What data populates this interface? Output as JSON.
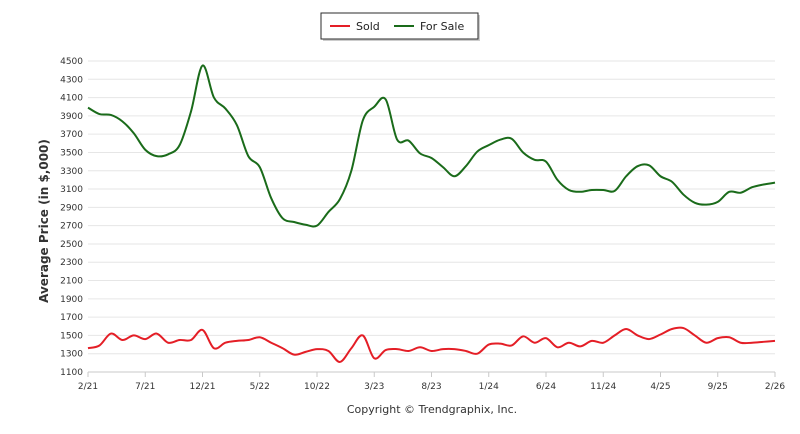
{
  "chart_data": {
    "type": "line",
    "xlabel": "",
    "ylabel": "Average Price (in $,000)",
    "footer": "Copyright © Trendgraphix, Inc.",
    "ylim": [
      1100,
      4500
    ],
    "yticks": [
      1100,
      1300,
      1500,
      1700,
      1900,
      2100,
      2300,
      2500,
      2700,
      2900,
      3100,
      3300,
      3500,
      3700,
      3900,
      4100,
      4300,
      4500
    ],
    "xticks": [
      "2/21",
      "7/21",
      "12/21",
      "5/22",
      "10/22",
      "3/23",
      "8/23",
      "1/24",
      "6/24",
      "11/24",
      "4/25",
      "9/25",
      "2/26"
    ],
    "grid": true,
    "legend": "top-center",
    "categories": [
      "2/21",
      "3/21",
      "4/21",
      "5/21",
      "6/21",
      "7/21",
      "8/21",
      "9/21",
      "10/21",
      "11/21",
      "12/21",
      "1/22",
      "2/22",
      "3/22",
      "4/22",
      "5/22",
      "6/22",
      "7/22",
      "8/22",
      "9/22",
      "10/22",
      "11/22",
      "12/22",
      "1/23",
      "2/23",
      "3/23",
      "4/23",
      "5/23",
      "6/23",
      "7/23",
      "8/23",
      "9/23",
      "10/23",
      "11/23",
      "12/23",
      "1/24",
      "2/24",
      "3/24",
      "4/24",
      "5/24",
      "6/24",
      "7/24",
      "8/24",
      "9/24",
      "10/24",
      "11/24",
      "12/24",
      "1/25",
      "2/25",
      "3/25",
      "4/25",
      "5/25",
      "6/25",
      "7/25",
      "8/25",
      "9/25",
      "10/25",
      "11/25",
      "12/25",
      "1/26",
      "2/26"
    ],
    "series": [
      {
        "name": "Sold",
        "color": "#e41e26",
        "values": [
          1360,
          1390,
          1520,
          1450,
          1500,
          1460,
          1520,
          1420,
          1450,
          1450,
          1560,
          1360,
          1420,
          1440,
          1450,
          1480,
          1420,
          1360,
          1290,
          1320,
          1350,
          1330,
          1210,
          1360,
          1500,
          1250,
          1340,
          1350,
          1330,
          1370,
          1330,
          1350,
          1350,
          1330,
          1300,
          1400,
          1410,
          1390,
          1490,
          1420,
          1470,
          1370,
          1420,
          1380,
          1440,
          1420,
          1500,
          1570,
          1500,
          1460,
          1510,
          1570,
          1580,
          1500,
          1420,
          1470,
          1480,
          1420,
          1420,
          1430,
          1440
        ]
      },
      {
        "name": "For Sale",
        "color": "#1a6b1a",
        "values": [
          3990,
          3920,
          3910,
          3840,
          3710,
          3530,
          3460,
          3480,
          3580,
          3950,
          4450,
          4100,
          3980,
          3800,
          3460,
          3340,
          3000,
          2780,
          2740,
          2710,
          2700,
          2850,
          2990,
          3300,
          3850,
          4000,
          4080,
          3640,
          3630,
          3490,
          3440,
          3340,
          3240,
          3350,
          3510,
          3580,
          3640,
          3650,
          3500,
          3420,
          3400,
          3200,
          3090,
          3070,
          3090,
          3090,
          3080,
          3240,
          3350,
          3360,
          3240,
          3180,
          3040,
          2950,
          2930,
          2960,
          3070,
          3060,
          3120,
          3150,
          3170
        ]
      }
    ]
  }
}
